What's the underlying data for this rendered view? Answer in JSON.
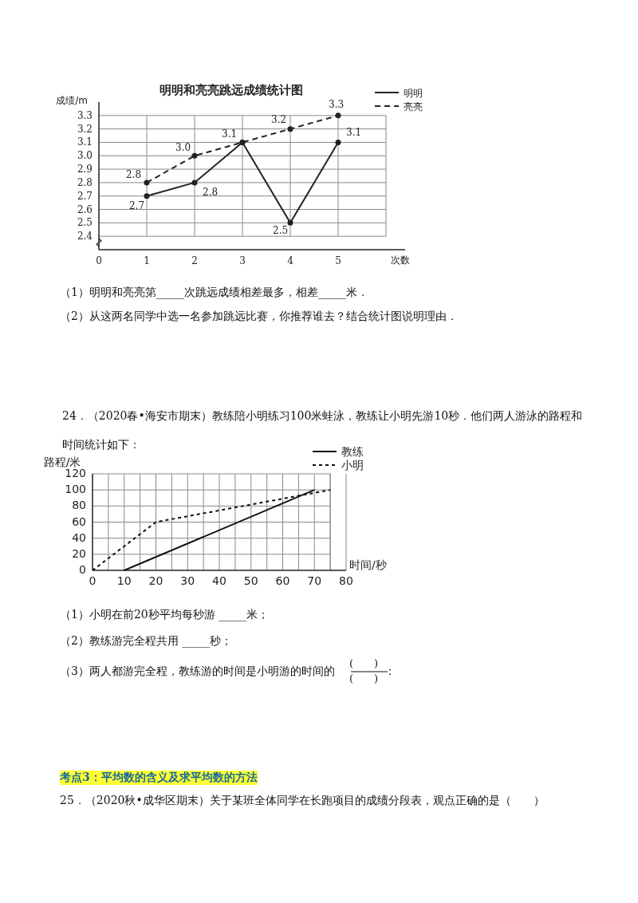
{
  "chart_data": [
    {
      "type": "line",
      "title": "明明和亮亮跳远成绩统计图",
      "ylabel": "成绩/m",
      "xlabel": "次数",
      "x": [
        1,
        2,
        3,
        4,
        5
      ],
      "xlim": [
        0,
        6.4
      ],
      "xticks": [
        0,
        1,
        2,
        3,
        4,
        5
      ],
      "ylim": [
        2.3,
        3.4
      ],
      "yticks": [
        {
          "value": 2.4,
          "label": "2.4"
        },
        {
          "value": 2.5,
          "label": "2.5"
        },
        {
          "value": 2.6,
          "label": "2.6"
        },
        {
          "value": 2.7,
          "label": "2.7"
        },
        {
          "value": 2.8,
          "label": "2.8"
        },
        {
          "value": 2.9,
          "label": "2.9"
        },
        {
          "value": 3,
          "label": "3.0"
        },
        {
          "value": 3.1,
          "label": "3.1"
        },
        {
          "value": 3.2,
          "label": "3.2"
        },
        {
          "value": 3.3,
          "label": "3.3"
        }
      ],
      "grid": true,
      "legend": "top right",
      "marker": "circle",
      "series": [
        {
          "name": "明明",
          "color": "#222222",
          "line_style": "solid",
          "values": [
            2.7,
            2.8,
            3.1,
            2.5,
            3.1
          ],
          "value_labels": [
            "2.7",
            "2.8",
            null,
            "2.5",
            "3.1"
          ]
        },
        {
          "name": "亮亮",
          "color": "#222222",
          "line_style": "dashed",
          "values": [
            2.8,
            3.0,
            3.1,
            3.2,
            3.3
          ],
          "value_labels": [
            "2.8",
            "3.0",
            "3.1",
            "3.2",
            "3.3"
          ]
        }
      ],
      "annotations": [
        "（1）明明和亮亮第_____次跳远成绩相差最多，相差_____米．",
        "（2）从这两名同学中选一名参加跳远比赛，你推荐谁去？结合统计图说明理由．"
      ]
    },
    {
      "type": "line",
      "ylabel": "路程/米",
      "xlabel": "时间/秒",
      "xlim": [
        0,
        80
      ],
      "xticks": [
        0,
        {
          "value": 5,
          "label": null
        },
        10,
        {
          "value": 15,
          "label": null
        },
        20,
        {
          "value": 25,
          "label": null
        },
        30,
        {
          "value": 35,
          "label": null
        },
        40,
        {
          "value": 45,
          "label": null
        },
        50,
        {
          "value": 55,
          "label": null
        },
        60,
        {
          "value": 65,
          "label": null
        },
        70,
        {
          "value": 75,
          "label": null
        },
        80
      ],
      "ylim": [
        0,
        120
      ],
      "yticks": [
        0,
        20,
        40,
        60,
        80,
        100,
        120
      ],
      "grid": true,
      "legend": "top right",
      "series": [
        {
          "name": "教练",
          "color": "#111111",
          "line_style": "solid",
          "x": [
            10,
            70
          ],
          "values": [
            0,
            100
          ]
        },
        {
          "name": "小明",
          "color": "#111111",
          "line_style": "dotted",
          "x": [
            0,
            20,
            75
          ],
          "values": [
            0,
            60,
            100
          ]
        }
      ],
      "annotations": [
        "24．（2020春•海安市期末）教练陪小明练习100米蛙泳，教练让小明先游10秒．他们两人游泳的路程和时间统计如下：",
        "（1）小明在前20秒平均每秒游 _____米；",
        "（2）教练游完全程共用 _____秒；",
        "（3）两人都游完全程，教练游的时间是小明游的时间的",
        "(　　)",
        "(　　)",
        "：",
        "考点3：平均数的含义及求平均数的方法",
        "25．（2020秋•成华区期末）关于某班全体同学在长跑项目的成绩分段表，观点正确的是（　　）"
      ]
    }
  ]
}
